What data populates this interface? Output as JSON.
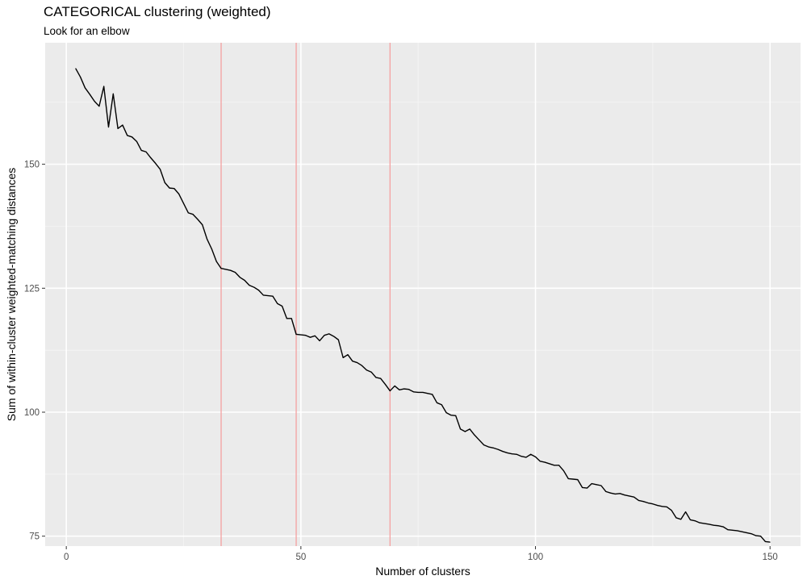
{
  "chart_data": {
    "type": "line",
    "title": "CATEGORICAL clustering (weighted)",
    "subtitle": "Look for an elbow",
    "xlabel": "Number of clusters",
    "ylabel": "Sum of within-cluster weighted-matching distances",
    "xlim": [
      -4.5,
      156.5
    ],
    "ylim": [
      73.0,
      174.5
    ],
    "xticks": [
      0,
      50,
      100,
      150
    ],
    "xtick_labels": [
      "0",
      "50",
      "100",
      "150"
    ],
    "yticks": [
      75,
      100,
      125,
      150
    ],
    "ytick_labels": [
      "75",
      "100",
      "125",
      "150"
    ],
    "x_minor_ticks": [
      25,
      75,
      125
    ],
    "y_minor_ticks": [
      87.5,
      112.5,
      137.5,
      162.5
    ],
    "grid": true,
    "colors": {
      "panel_background": "#ebebeb",
      "grid_major": "#ffffff",
      "grid_minor": "#f5f5f5",
      "line": "#000000",
      "vline": "#f4a0a0"
    },
    "vlines": [
      33,
      49,
      69
    ],
    "series": [
      {
        "x": [
          2,
          3,
          4,
          5,
          6,
          7,
          8,
          9,
          10,
          11,
          12,
          13,
          14,
          15,
          16,
          17,
          18,
          19,
          20,
          21,
          22,
          23,
          24,
          25,
          26,
          27,
          28,
          29,
          30,
          31,
          32,
          33,
          34,
          35,
          36,
          37,
          38,
          39,
          40,
          41,
          42,
          43,
          44,
          45,
          46,
          47,
          48,
          49,
          50,
          51,
          52,
          53,
          54,
          55,
          56,
          57,
          58,
          59,
          60,
          61,
          62,
          63,
          64,
          65,
          66,
          67,
          68,
          69,
          70,
          71,
          72,
          73,
          74,
          75,
          76,
          77,
          78,
          79,
          80,
          81,
          82,
          83,
          84,
          85,
          86,
          87,
          88,
          89,
          90,
          91,
          92,
          93,
          94,
          95,
          96,
          97,
          98,
          99,
          100,
          101,
          102,
          103,
          104,
          105,
          106,
          107,
          108,
          109,
          110,
          111,
          112,
          113,
          114,
          115,
          116,
          117,
          118,
          119,
          120,
          121,
          122,
          123,
          124,
          125,
          126,
          127,
          128,
          129,
          130,
          131,
          132,
          133,
          134,
          135,
          135,
          137,
          138,
          139,
          140,
          141,
          142,
          143,
          144,
          145,
          146,
          147,
          148,
          149,
          150
        ],
        "y": [
          169.3,
          167.6,
          165.4,
          164.1,
          162.7,
          161.7,
          165.7,
          157.5,
          164.2,
          157.2,
          157.9,
          155.8,
          155.5,
          154.6,
          152.8,
          152.5,
          151.3,
          150.2,
          149.0,
          146.3,
          145.2,
          145.1,
          144.0,
          142.1,
          140.2,
          139.9,
          138.9,
          137.8,
          134.9,
          132.9,
          130.4,
          129.0,
          128.8,
          128.6,
          128.2,
          127.2,
          126.6,
          125.6,
          125.2,
          124.6,
          123.6,
          123.5,
          123.4,
          121.9,
          121.4,
          118.9,
          118.9,
          115.7,
          115.6,
          115.5,
          115.1,
          115.4,
          114.4,
          115.5,
          115.8,
          115.3,
          114.6,
          111.0,
          111.6,
          110.3,
          110.0,
          109.4,
          108.5,
          108.1,
          107.0,
          106.8,
          105.6,
          104.3,
          105.3,
          104.5,
          104.7,
          104.6,
          104.1,
          104.0,
          104.0,
          103.8,
          103.6,
          101.9,
          101.5,
          99.9,
          99.4,
          99.3,
          96.6,
          96.1,
          96.6,
          95.4,
          94.4,
          93.4,
          93.0,
          92.8,
          92.5,
          92.1,
          91.8,
          91.6,
          91.5,
          91.1,
          90.9,
          91.5,
          91.0,
          90.1,
          89.9,
          89.6,
          89.3,
          89.3,
          88.2,
          86.6,
          86.5,
          86.4,
          84.8,
          84.7,
          85.6,
          85.4,
          85.2,
          84.0,
          83.7,
          83.5,
          83.6,
          83.3,
          83.1,
          82.9,
          82.2,
          82.0,
          81.7,
          81.5,
          81.2,
          81.0,
          80.9,
          80.2,
          78.7,
          78.4,
          79.9,
          78.3,
          78.1,
          77.7,
          77.7,
          77.4,
          77.2,
          77.1,
          76.9,
          76.3,
          76.2,
          76.1,
          75.9,
          75.7,
          75.5,
          75.1,
          75.0,
          73.9,
          73.8
        ]
      }
    ]
  }
}
